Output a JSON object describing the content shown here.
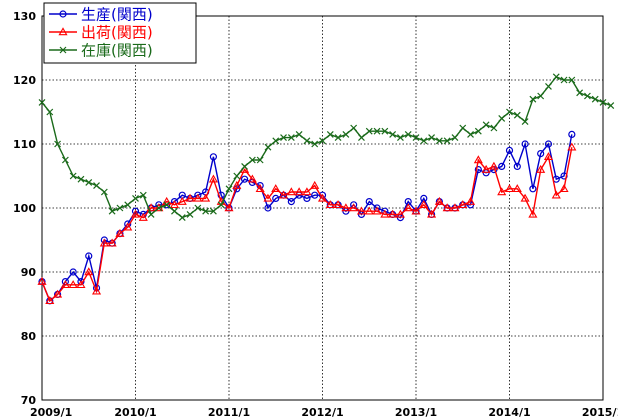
{
  "chart_data": {
    "type": "line",
    "title": "",
    "xlabel": "",
    "ylabel": "",
    "ylim": [
      70,
      130
    ],
    "yticks": [
      70,
      80,
      90,
      100,
      110,
      120,
      130
    ],
    "xlim": [
      "2009-01",
      "2015-01"
    ],
    "xticks": [
      {
        "x": "2009-01",
        "label": "2009/1"
      },
      {
        "x": "2010-01",
        "label": "2010/1"
      },
      {
        "x": "2011-01",
        "label": "2011/1"
      },
      {
        "x": "2012-01",
        "label": "2012/1"
      },
      {
        "x": "2013-01",
        "label": "2013/1"
      },
      {
        "x": "2014-01",
        "label": "2014/1"
      },
      {
        "x": "2015-01",
        "label": "2015/1"
      }
    ],
    "grid": true,
    "legend_position": "top-left",
    "x_start": "2009-01",
    "series": [
      {
        "name": "生産(関西)",
        "color": "#0000cc",
        "marker": "circle",
        "values": [
          88.5,
          85.5,
          86.5,
          88.5,
          90,
          88.5,
          92.5,
          87.5,
          95,
          94.5,
          96,
          97.5,
          99.5,
          99,
          100,
          100.5,
          100.5,
          101,
          102,
          101.5,
          102,
          102.5,
          108,
          102,
          100,
          103,
          104.5,
          104,
          103.5,
          100,
          101.5,
          102,
          101,
          102,
          101.5,
          102,
          102,
          100.5,
          100.5,
          99.5,
          100.5,
          99,
          101,
          100,
          99.5,
          99,
          98.5,
          101,
          99.5,
          101.5,
          99,
          101,
          100,
          100,
          100.5,
          100.5,
          106,
          105.5,
          106,
          106.5,
          109,
          106.5,
          110,
          103,
          108.5,
          110,
          104.5,
          105,
          111.5
        ]
      },
      {
        "name": "出荷(関西)",
        "color": "#ff0000",
        "marker": "triangle",
        "values": [
          88.5,
          85.5,
          86.5,
          88,
          88,
          88,
          90,
          87,
          94.5,
          94.5,
          96,
          97,
          99,
          98.5,
          100,
          100,
          101,
          100.5,
          101,
          101.5,
          101.5,
          101.5,
          104.5,
          101,
          100,
          103.5,
          106,
          104.5,
          103,
          101.5,
          103,
          102,
          102.5,
          102.5,
          102.5,
          103.5,
          101.5,
          100.5,
          100.5,
          100,
          100,
          99.5,
          99.5,
          99.5,
          99,
          99,
          99,
          100,
          99.5,
          100.5,
          99,
          101,
          100,
          100,
          100.5,
          101,
          107.5,
          106,
          106.5,
          102.5,
          103,
          103,
          101.5,
          99,
          106,
          108,
          102,
          103,
          109.5
        ]
      },
      {
        "name": "在庫(関西)",
        "color": "#1a6a1a",
        "marker": "x",
        "values": [
          116.5,
          115,
          110,
          107.5,
          105,
          104.5,
          104,
          103.5,
          102.5,
          99.5,
          100,
          100.5,
          101.5,
          102,
          99,
          100,
          100.5,
          99.5,
          98.5,
          99,
          100,
          99.5,
          99.5,
          100.5,
          103,
          105,
          106.5,
          107.5,
          107.5,
          109.5,
          110.5,
          111,
          111,
          111.5,
          110.5,
          110,
          110.5,
          111.5,
          111,
          111.5,
          112.5,
          111,
          112,
          112,
          112,
          111.5,
          111,
          111.5,
          111,
          110.5,
          111,
          110.5,
          110.5,
          111,
          112.5,
          111.5,
          112,
          113,
          112.5,
          114,
          115,
          114.5,
          113.5,
          117,
          117.5,
          119,
          120.5,
          120,
          120,
          118,
          117.5,
          117,
          116.5,
          116
        ]
      }
    ]
  }
}
